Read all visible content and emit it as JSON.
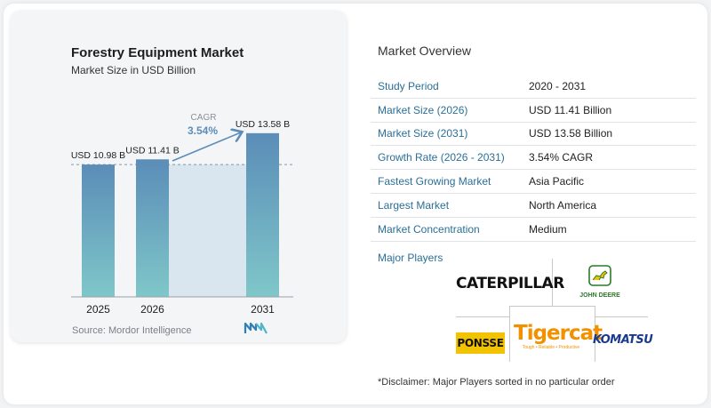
{
  "chart_data": {
    "type": "bar",
    "title": "Forestry Equipment Market",
    "subtitle": "Market Size in USD Billion",
    "categories": [
      "2025",
      "2026",
      "2031"
    ],
    "values": [
      10.98,
      11.41,
      13.58
    ],
    "data_labels": [
      "USD 10.98 B",
      "USD 11.41 B",
      "USD 13.58 B"
    ],
    "cagr_label": "CAGR",
    "cagr_value": "3.54%",
    "ylim": [
      0,
      14.6
    ],
    "grid": false,
    "colors": {
      "bar_top": "#5b8db8",
      "bar_bottom": "#7fc7c9",
      "band": "#d9e6ef",
      "arrow": "#5b8db8"
    }
  },
  "source": "Source:  Mordor Intelligence",
  "overview": {
    "title": "Market Overview",
    "rows": [
      {
        "label": "Study Period",
        "value": "2020 - 2031"
      },
      {
        "label": "Market Size (2026)",
        "value": "USD 11.41 Billion"
      },
      {
        "label": "Market Size (2031)",
        "value": "USD 13.58 Billion"
      },
      {
        "label": "Growth Rate (2026 - 2031)",
        "value": "3.54% CAGR"
      },
      {
        "label": "Fastest Growing Market",
        "value": "Asia Pacific"
      },
      {
        "label": "Largest Market",
        "value": "North America"
      },
      {
        "label": "Market Concentration",
        "value": "Medium"
      }
    ]
  },
  "players": {
    "title": "Major Players",
    "logos": {
      "caterpillar": "CATERPILLAR",
      "john_deere": "JOHN DEERE",
      "ponsse": "PONSSE",
      "tigercat": "Tigercat",
      "tigercat_tagline": "Tough • Reliable • Productive",
      "komatsu": "KOMATSU"
    }
  },
  "disclaimer": "*Disclaimer: Major Players sorted in no particular order"
}
